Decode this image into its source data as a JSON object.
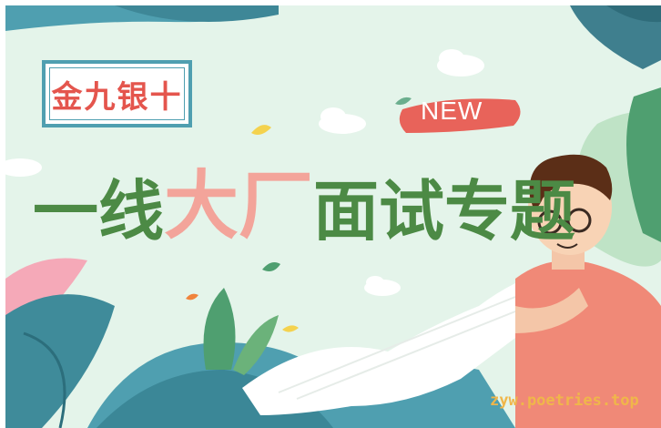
{
  "banner": {
    "tag_label": "金九银十",
    "headline_part1": "一线",
    "headline_part2": "大厂",
    "headline_part3": "面试专题",
    "new_label": "NEW",
    "watermark": "zyw.poetries.top"
  },
  "colors": {
    "background": "#e4f4ea",
    "headline_green": "#4c8a45",
    "headline_pink": "#f3a49a",
    "tag_border": "#4f9fb0",
    "tag_text": "#e4554d",
    "new_brush": "#e8635a",
    "watermark": "#f0b64a"
  },
  "icons": [
    "leaf-icon",
    "cloud-icon",
    "person-illustration",
    "paper-scroll-icon",
    "brush-stroke-icon"
  ]
}
